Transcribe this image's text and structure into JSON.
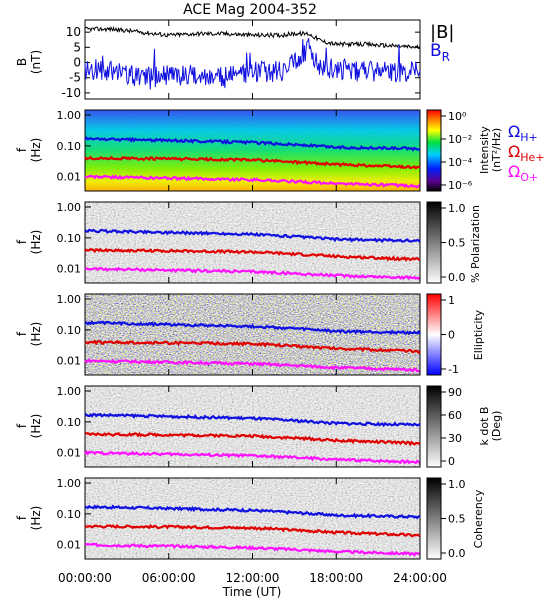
{
  "title": "ACE Mag 2004-352",
  "x_axis": {
    "label": "Time (UT)",
    "tick_labels": [
      "00:00:00",
      "06:00:00",
      "12:00:00",
      "18:00:00",
      "24:00:00"
    ]
  },
  "legend_gyro": [
    {
      "base": "Ω",
      "sub": "H+",
      "color": "#1010e0"
    },
    {
      "base": "Ω",
      "sub": "He+",
      "color": "#e00000"
    },
    {
      "base": "Ω",
      "sub": "O+",
      "color": "#ff10ff"
    }
  ],
  "chart_data": [
    {
      "type": "line",
      "panel": "B",
      "ylabel": "B",
      "yunit": "(nT)",
      "ylim": [
        -12,
        14
      ],
      "y_ticks": [
        "10",
        "5",
        "0",
        "-5",
        "-10"
      ],
      "x": [
        "00:00",
        "02:00",
        "04:00",
        "06:00",
        "08:00",
        "10:00",
        "12:00",
        "14:00",
        "15:00",
        "16:00",
        "17:00",
        "18:00",
        "20:00",
        "22:00",
        "24:00"
      ],
      "series": [
        {
          "name": "|B|",
          "color": "#000000",
          "values": [
            11,
            11,
            10,
            9,
            9.5,
            9.5,
            9,
            9,
            9.5,
            9.5,
            7,
            6,
            6,
            5.5,
            5
          ]
        },
        {
          "name": "B",
          "sub": "R",
          "color": "#1010e0",
          "values": [
            -2,
            -3,
            -5,
            -4,
            -4,
            -5,
            -3,
            -3,
            0,
            5,
            -2,
            -2,
            -3,
            -3,
            -3
          ]
        }
      ]
    },
    {
      "type": "heatmap",
      "panel": "spectra",
      "ylabel": "f",
      "yunit": "(Hz)",
      "y_ticks": [
        "1.00",
        "0.10",
        "0.01"
      ],
      "colorbar": {
        "label": "Intensity",
        "unit": "(nT²/Hz)",
        "ticks": [
          "10⁰",
          "10⁻²",
          "10⁻⁴",
          "10⁻⁶"
        ]
      },
      "gyro_lines_hz": {
        "H+": [
          0.17,
          0.15,
          0.13,
          0.09,
          0.08
        ],
        "He+": [
          0.04,
          0.038,
          0.035,
          0.025,
          0.02
        ],
        "O+": [
          0.01,
          0.009,
          0.008,
          0.006,
          0.005
        ]
      }
    },
    {
      "type": "heatmap",
      "panel": "polarization",
      "ylabel": "f",
      "yunit": "(Hz)",
      "y_ticks": [
        "1.00",
        "0.10",
        "0.01"
      ],
      "colorbar": {
        "label": "% Polarization",
        "ticks": [
          "1.0",
          "0.5",
          "0.0"
        ]
      }
    },
    {
      "type": "heatmap",
      "panel": "ellipticity",
      "ylabel": "f",
      "yunit": "(Hz)",
      "y_ticks": [
        "1.00",
        "0.10",
        "0.01"
      ],
      "colorbar": {
        "label": "Ellipticity",
        "ticks": [
          "1",
          "0",
          "-1"
        ]
      }
    },
    {
      "type": "heatmap",
      "panel": "kdotb",
      "ylabel": "f",
      "yunit": "(Hz)",
      "y_ticks": [
        "1.00",
        "0.10",
        "0.01"
      ],
      "colorbar": {
        "label": "k dot B",
        "unit": "(Deg)",
        "ticks": [
          "90",
          "60",
          "30",
          "0"
        ]
      }
    },
    {
      "type": "heatmap",
      "panel": "coherency",
      "ylabel": "f",
      "yunit": "(Hz)",
      "y_ticks": [
        "1.00",
        "0.10",
        "0.01"
      ],
      "colorbar": {
        "label": "Coherency",
        "ticks": [
          "1.0",
          "0.5",
          "0.0"
        ]
      }
    }
  ]
}
